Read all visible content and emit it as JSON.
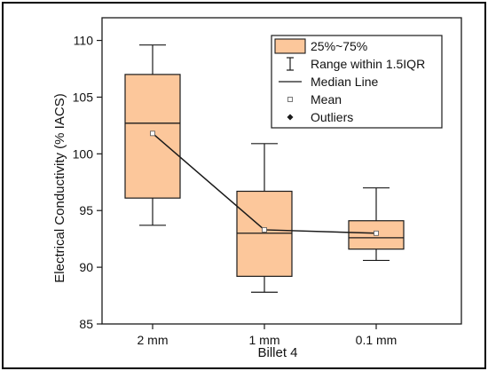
{
  "chart_data": {
    "type": "box",
    "title": "",
    "xlabel": "Billet 4",
    "ylabel": "Electrical Conductivity (% IACS)",
    "ylim": [
      85,
      112
    ],
    "yticks": [
      85,
      90,
      95,
      100,
      105,
      110
    ],
    "categories": [
      "2 mm",
      "1 mm",
      "0.1 mm"
    ],
    "boxes": [
      {
        "category": "2 mm",
        "whisker_low": 93.7,
        "q1": 96.1,
        "median": 102.7,
        "q3": 107.0,
        "whisker_high": 109.6,
        "mean": 101.8
      },
      {
        "category": "1 mm",
        "whisker_low": 87.8,
        "q1": 89.2,
        "median": 93.0,
        "q3": 96.7,
        "whisker_high": 100.9,
        "mean": 93.3
      },
      {
        "category": "0.1 mm",
        "whisker_low": 90.6,
        "q1": 91.6,
        "median": 92.6,
        "q3": 94.1,
        "whisker_high": 97.0,
        "mean": 93.0
      }
    ],
    "legend": {
      "position": "top-right",
      "entries": [
        "25%~75%",
        "Range within 1.5IQR",
        "Median Line",
        "Mean",
        "Outliers"
      ]
    },
    "mean_line": true,
    "grid": false,
    "colors": {
      "box_fill": "#FCC79B",
      "stroke": "#1a1a1a",
      "outer_border": "#000000"
    }
  }
}
